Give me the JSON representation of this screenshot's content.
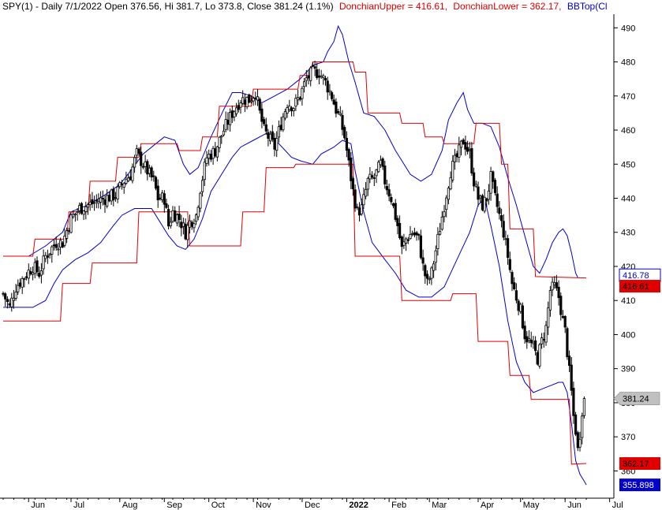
{
  "header": {
    "prefix": "SPY(1) - Daily 7/1/2022 Open 376.56, Hi 381.7, Lo 373.8, Close 381.24 (1.1%)",
    "upper": "DonchianUpper = 416.61,",
    "lower": "DonchianLower = 362.17,",
    "bbtop": "BBTop(Cl"
  },
  "colors": {
    "candle": "#000000",
    "donchian": "#e00000",
    "bollinger": "#0000cc",
    "axis": "#000000",
    "close_badge": "#c0c0c0",
    "bbtop_badge": "#0000cc",
    "donchian_badge": "#e00000"
  },
  "badges": {
    "bbtop_upper": "416.78",
    "donchian_upper": "416.61",
    "close": "381.24",
    "donchian_lower": "362.17",
    "bb_lower": "355.898"
  },
  "chart_data": {
    "type": "candlestick",
    "title": "SPY(1) - Daily 7/1/2022",
    "ylim": [
      352,
      494
    ],
    "yticks": [
      360,
      370,
      380,
      390,
      400,
      410,
      420,
      430,
      440,
      450,
      460,
      470,
      480,
      490
    ],
    "ytick_labels": [
      "360",
      "370",
      "380",
      "390",
      "400",
      "410",
      "420",
      "430",
      "440",
      "450",
      "460",
      "470",
      "480",
      "490"
    ],
    "xlim": [
      0,
      275
    ],
    "months": [
      {
        "label": "Jun",
        "t": 12,
        "bold": false
      },
      {
        "label": "Jul",
        "t": 32,
        "bold": false
      },
      {
        "label": "Aug",
        "t": 55,
        "bold": false
      },
      {
        "label": "Sep",
        "t": 76,
        "bold": false
      },
      {
        "label": "Oct",
        "t": 97,
        "bold": false
      },
      {
        "label": "Nov",
        "t": 118,
        "bold": false
      },
      {
        "label": "Dec",
        "t": 141,
        "bold": false
      },
      {
        "label": "2022",
        "t": 162,
        "bold": true
      },
      {
        "label": "Feb",
        "t": 182,
        "bold": false
      },
      {
        "label": "Mar",
        "t": 201,
        "bold": false
      },
      {
        "label": "Apr",
        "t": 224,
        "bold": false
      },
      {
        "label": "May",
        "t": 244,
        "bold": false
      },
      {
        "label": "Jun",
        "t": 265,
        "bold": false
      },
      {
        "label": "Jul",
        "t": 286,
        "bold": false
      }
    ],
    "close_anchors": [
      [
        0,
        412
      ],
      [
        3,
        408
      ],
      [
        6,
        414
      ],
      [
        10,
        417
      ],
      [
        14,
        420
      ],
      [
        17,
        418
      ],
      [
        20,
        423
      ],
      [
        25,
        427
      ],
      [
        28,
        427
      ],
      [
        32,
        434
      ],
      [
        36,
        437
      ],
      [
        40,
        438
      ],
      [
        44,
        439
      ],
      [
        48,
        440
      ],
      [
        53,
        441
      ],
      [
        57,
        445
      ],
      [
        60,
        447
      ],
      [
        63,
        453
      ],
      [
        66,
        450
      ],
      [
        69,
        447
      ],
      [
        71,
        445
      ],
      [
        73,
        440
      ],
      [
        76,
        440
      ],
      [
        78,
        432
      ],
      [
        80,
        436
      ],
      [
        83,
        434
      ],
      [
        86,
        430
      ],
      [
        88,
        433
      ],
      [
        91,
        435
      ],
      [
        93,
        443
      ],
      [
        96,
        452
      ],
      [
        100,
        454
      ],
      [
        104,
        460
      ],
      [
        108,
        465
      ],
      [
        112,
        469
      ],
      [
        116,
        469
      ],
      [
        119,
        471
      ],
      [
        121,
        465
      ],
      [
        123,
        460
      ],
      [
        125,
        458
      ],
      [
        128,
        455
      ],
      [
        131,
        462
      ],
      [
        134,
        468
      ],
      [
        137,
        467
      ],
      [
        140,
        470
      ],
      [
        143,
        475
      ],
      [
        146,
        477
      ],
      [
        149,
        477
      ],
      [
        152,
        474
      ],
      [
        155,
        470
      ],
      [
        157,
        466
      ],
      [
        159,
        463
      ],
      [
        161,
        458
      ],
      [
        163,
        450
      ],
      [
        165,
        442
      ],
      [
        167,
        436
      ],
      [
        169,
        437
      ],
      [
        172,
        445
      ],
      [
        175,
        446
      ],
      [
        178,
        450
      ],
      [
        180,
        445
      ],
      [
        183,
        440
      ],
      [
        186,
        432
      ],
      [
        188,
        425
      ],
      [
        190,
        428
      ],
      [
        193,
        430
      ],
      [
        196,
        428
      ],
      [
        198,
        420
      ],
      [
        200,
        415
      ],
      [
        202,
        418
      ],
      [
        205,
        428
      ],
      [
        208,
        438
      ],
      [
        211,
        448
      ],
      [
        214,
        452
      ],
      [
        217,
        457
      ],
      [
        220,
        453
      ],
      [
        222,
        445
      ],
      [
        224,
        440
      ],
      [
        226,
        438
      ],
      [
        228,
        440
      ],
      [
        230,
        446
      ],
      [
        232,
        440
      ],
      [
        234,
        435
      ],
      [
        236,
        430
      ],
      [
        238,
        423
      ],
      [
        240,
        415
      ],
      [
        242,
        411
      ],
      [
        244,
        407
      ],
      [
        246,
        400
      ],
      [
        248,
        398
      ],
      [
        250,
        396
      ],
      [
        252,
        393
      ],
      [
        254,
        398
      ],
      [
        256,
        402
      ],
      [
        258,
        413
      ],
      [
        260,
        414
      ],
      [
        262,
        411
      ],
      [
        264,
        404
      ],
      [
        265,
        401
      ],
      [
        266,
        395
      ],
      [
        267,
        389
      ],
      [
        268,
        383
      ],
      [
        269,
        376
      ],
      [
        270,
        372
      ],
      [
        271,
        366
      ],
      [
        272,
        371
      ],
      [
        273,
        378
      ],
      [
        274,
        381.24
      ]
    ],
    "donchian_upper_steps": [
      [
        0,
        423
      ],
      [
        14,
        423
      ],
      [
        15,
        428
      ],
      [
        30,
        428
      ],
      [
        31,
        436
      ],
      [
        40,
        436
      ],
      [
        41,
        445
      ],
      [
        53,
        445
      ],
      [
        54,
        452
      ],
      [
        64,
        452
      ],
      [
        65,
        456
      ],
      [
        82,
        456
      ],
      [
        83,
        454
      ],
      [
        93,
        454
      ],
      [
        94,
        458
      ],
      [
        101,
        458
      ],
      [
        102,
        467
      ],
      [
        117,
        467
      ],
      [
        118,
        472
      ],
      [
        139,
        472
      ],
      [
        140,
        476
      ],
      [
        145,
        476
      ],
      [
        146,
        480
      ],
      [
        165,
        480
      ],
      [
        166,
        477
      ],
      [
        171,
        477
      ],
      [
        172,
        465
      ],
      [
        187,
        465
      ],
      [
        188,
        462
      ],
      [
        198,
        462
      ],
      [
        199,
        458
      ],
      [
        207,
        458
      ],
      [
        208,
        456
      ],
      [
        222,
        456
      ],
      [
        223,
        462
      ],
      [
        234,
        462
      ],
      [
        235,
        450
      ],
      [
        238,
        450
      ],
      [
        239,
        431
      ],
      [
        250,
        431
      ],
      [
        251,
        417
      ],
      [
        275,
        416.61
      ]
    ],
    "donchian_lower_steps": [
      [
        0,
        404
      ],
      [
        27,
        404
      ],
      [
        28,
        415
      ],
      [
        41,
        415
      ],
      [
        42,
        421
      ],
      [
        63,
        421
      ],
      [
        64,
        436
      ],
      [
        87,
        436
      ],
      [
        88,
        426
      ],
      [
        112,
        426
      ],
      [
        113,
        436
      ],
      [
        123,
        436
      ],
      [
        124,
        449
      ],
      [
        137,
        449
      ],
      [
        138,
        450
      ],
      [
        165,
        450
      ],
      [
        166,
        423
      ],
      [
        187,
        423
      ],
      [
        188,
        410
      ],
      [
        211,
        410
      ],
      [
        212,
        412
      ],
      [
        223,
        412
      ],
      [
        224,
        398
      ],
      [
        238,
        398
      ],
      [
        239,
        388
      ],
      [
        248,
        388
      ],
      [
        249,
        381
      ],
      [
        267,
        381
      ],
      [
        268,
        362
      ],
      [
        275,
        362.17
      ]
    ],
    "bollinger_upper": [
      [
        0,
        423
      ],
      [
        12,
        423
      ],
      [
        20,
        426
      ],
      [
        28,
        430
      ],
      [
        32,
        436
      ],
      [
        40,
        438
      ],
      [
        48,
        441
      ],
      [
        55,
        444
      ],
      [
        60,
        448
      ],
      [
        66,
        453
      ],
      [
        72,
        456
      ],
      [
        76,
        458
      ],
      [
        81,
        457
      ],
      [
        85,
        450
      ],
      [
        88,
        447
      ],
      [
        92,
        449
      ],
      [
        98,
        458
      ],
      [
        104,
        466
      ],
      [
        108,
        471
      ],
      [
        112,
        471
      ],
      [
        117,
        470
      ],
      [
        122,
        468
      ],
      [
        128,
        470
      ],
      [
        134,
        472
      ],
      [
        140,
        475
      ],
      [
        146,
        479
      ],
      [
        151,
        480
      ],
      [
        153,
        483
      ],
      [
        156,
        486
      ],
      [
        158,
        490.5
      ],
      [
        160,
        488
      ],
      [
        163,
        480
      ],
      [
        166,
        474
      ],
      [
        170,
        465
      ],
      [
        175,
        464
      ],
      [
        180,
        460
      ],
      [
        185,
        454
      ],
      [
        188,
        451
      ],
      [
        192,
        447
      ],
      [
        197,
        445
      ],
      [
        202,
        447
      ],
      [
        207,
        454
      ],
      [
        210,
        463
      ],
      [
        214,
        468
      ],
      [
        217,
        471
      ],
      [
        219,
        466
      ],
      [
        222,
        462
      ],
      [
        226,
        462
      ],
      [
        230,
        461
      ],
      [
        234,
        455
      ],
      [
        238,
        446
      ],
      [
        242,
        438
      ],
      [
        246,
        429
      ],
      [
        250,
        420
      ],
      [
        253,
        418
      ],
      [
        256,
        422
      ],
      [
        259,
        427
      ],
      [
        262,
        430
      ],
      [
        264,
        431
      ],
      [
        266,
        429
      ],
      [
        268,
        424
      ],
      [
        270,
        418
      ],
      [
        271,
        416.78
      ]
    ],
    "bollinger_lower": [
      [
        0,
        408
      ],
      [
        14,
        408
      ],
      [
        20,
        410
      ],
      [
        24,
        415
      ],
      [
        28,
        419
      ],
      [
        34,
        422
      ],
      [
        40,
        424
      ],
      [
        46,
        427
      ],
      [
        52,
        432
      ],
      [
        56,
        435
      ],
      [
        62,
        437
      ],
      [
        66,
        437
      ],
      [
        70,
        437
      ],
      [
        74,
        433
      ],
      [
        78,
        429
      ],
      [
        82,
        426
      ],
      [
        86,
        425
      ],
      [
        90,
        428
      ],
      [
        94,
        434
      ],
      [
        98,
        442
      ],
      [
        104,
        448
      ],
      [
        108,
        452
      ],
      [
        112,
        455
      ],
      [
        118,
        457
      ],
      [
        124,
        459
      ],
      [
        130,
        456
      ],
      [
        136,
        452
      ],
      [
        140,
        451
      ],
      [
        146,
        450
      ],
      [
        150,
        453
      ],
      [
        156,
        455
      ],
      [
        160,
        457
      ],
      [
        164,
        456
      ],
      [
        166,
        448
      ],
      [
        170,
        436
      ],
      [
        174,
        427
      ],
      [
        180,
        422
      ],
      [
        185,
        418
      ],
      [
        190,
        413
      ],
      [
        196,
        411
      ],
      [
        202,
        411
      ],
      [
        208,
        414
      ],
      [
        214,
        422
      ],
      [
        220,
        430
      ],
      [
        224,
        438
      ],
      [
        227,
        440
      ],
      [
        230,
        432
      ],
      [
        234,
        420
      ],
      [
        238,
        404
      ],
      [
        242,
        392
      ],
      [
        246,
        386
      ],
      [
        250,
        383
      ],
      [
        254,
        384
      ],
      [
        258,
        385
      ],
      [
        262,
        386
      ],
      [
        264,
        386
      ],
      [
        266,
        383
      ],
      [
        268,
        374
      ],
      [
        270,
        363
      ],
      [
        272,
        359
      ],
      [
        274,
        357
      ],
      [
        275,
        355.9
      ]
    ]
  }
}
